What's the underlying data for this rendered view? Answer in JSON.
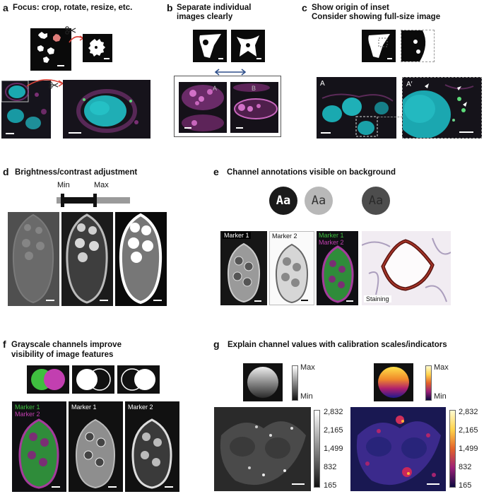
{
  "panels": {
    "a": {
      "letter": "a",
      "title": "Focus: crop, rotate, resize, etc."
    },
    "b": {
      "letter": "b",
      "title_line1": "Separate individual",
      "title_line2": "images clearly",
      "label_A": "A",
      "label_B": "B"
    },
    "c": {
      "letter": "c",
      "title_line1": "Show origin of inset",
      "title_line2": "Consider showing full-size image",
      "label_A": "A",
      "label_A_prime": "A′"
    },
    "d": {
      "letter": "d",
      "title": "Brightness/contrast adjustment",
      "min_label": "Min",
      "max_label": "Max"
    },
    "e": {
      "letter": "e",
      "title": "Channel annotations visible on background",
      "aa_text": "Aa",
      "marker1": "Marker 1",
      "marker2": "Marker 2",
      "staining": "Staining"
    },
    "f": {
      "letter": "f",
      "title_line1": "Grayscale channels improve",
      "title_line2": "visibility of image features",
      "marker1": "Marker 1",
      "marker2": "Marker 2"
    },
    "g": {
      "letter": "g",
      "title": "Explain channel values with calibration scales/indicators",
      "max_label": "Max",
      "min_label": "Min",
      "scale_ticks": [
        "2,832",
        "2,165",
        "1,499",
        "832",
        "165"
      ]
    }
  },
  "colors": {
    "arrow_red": "#d9453b",
    "arrow_blue": "#2e4f8a",
    "green": "#3fbf3f",
    "magenta": "#c23fb0",
    "cyan": "#2cc2c8"
  },
  "icons": [
    "scissors-icon",
    "double-arrow-icon",
    "arrowhead-icon"
  ]
}
